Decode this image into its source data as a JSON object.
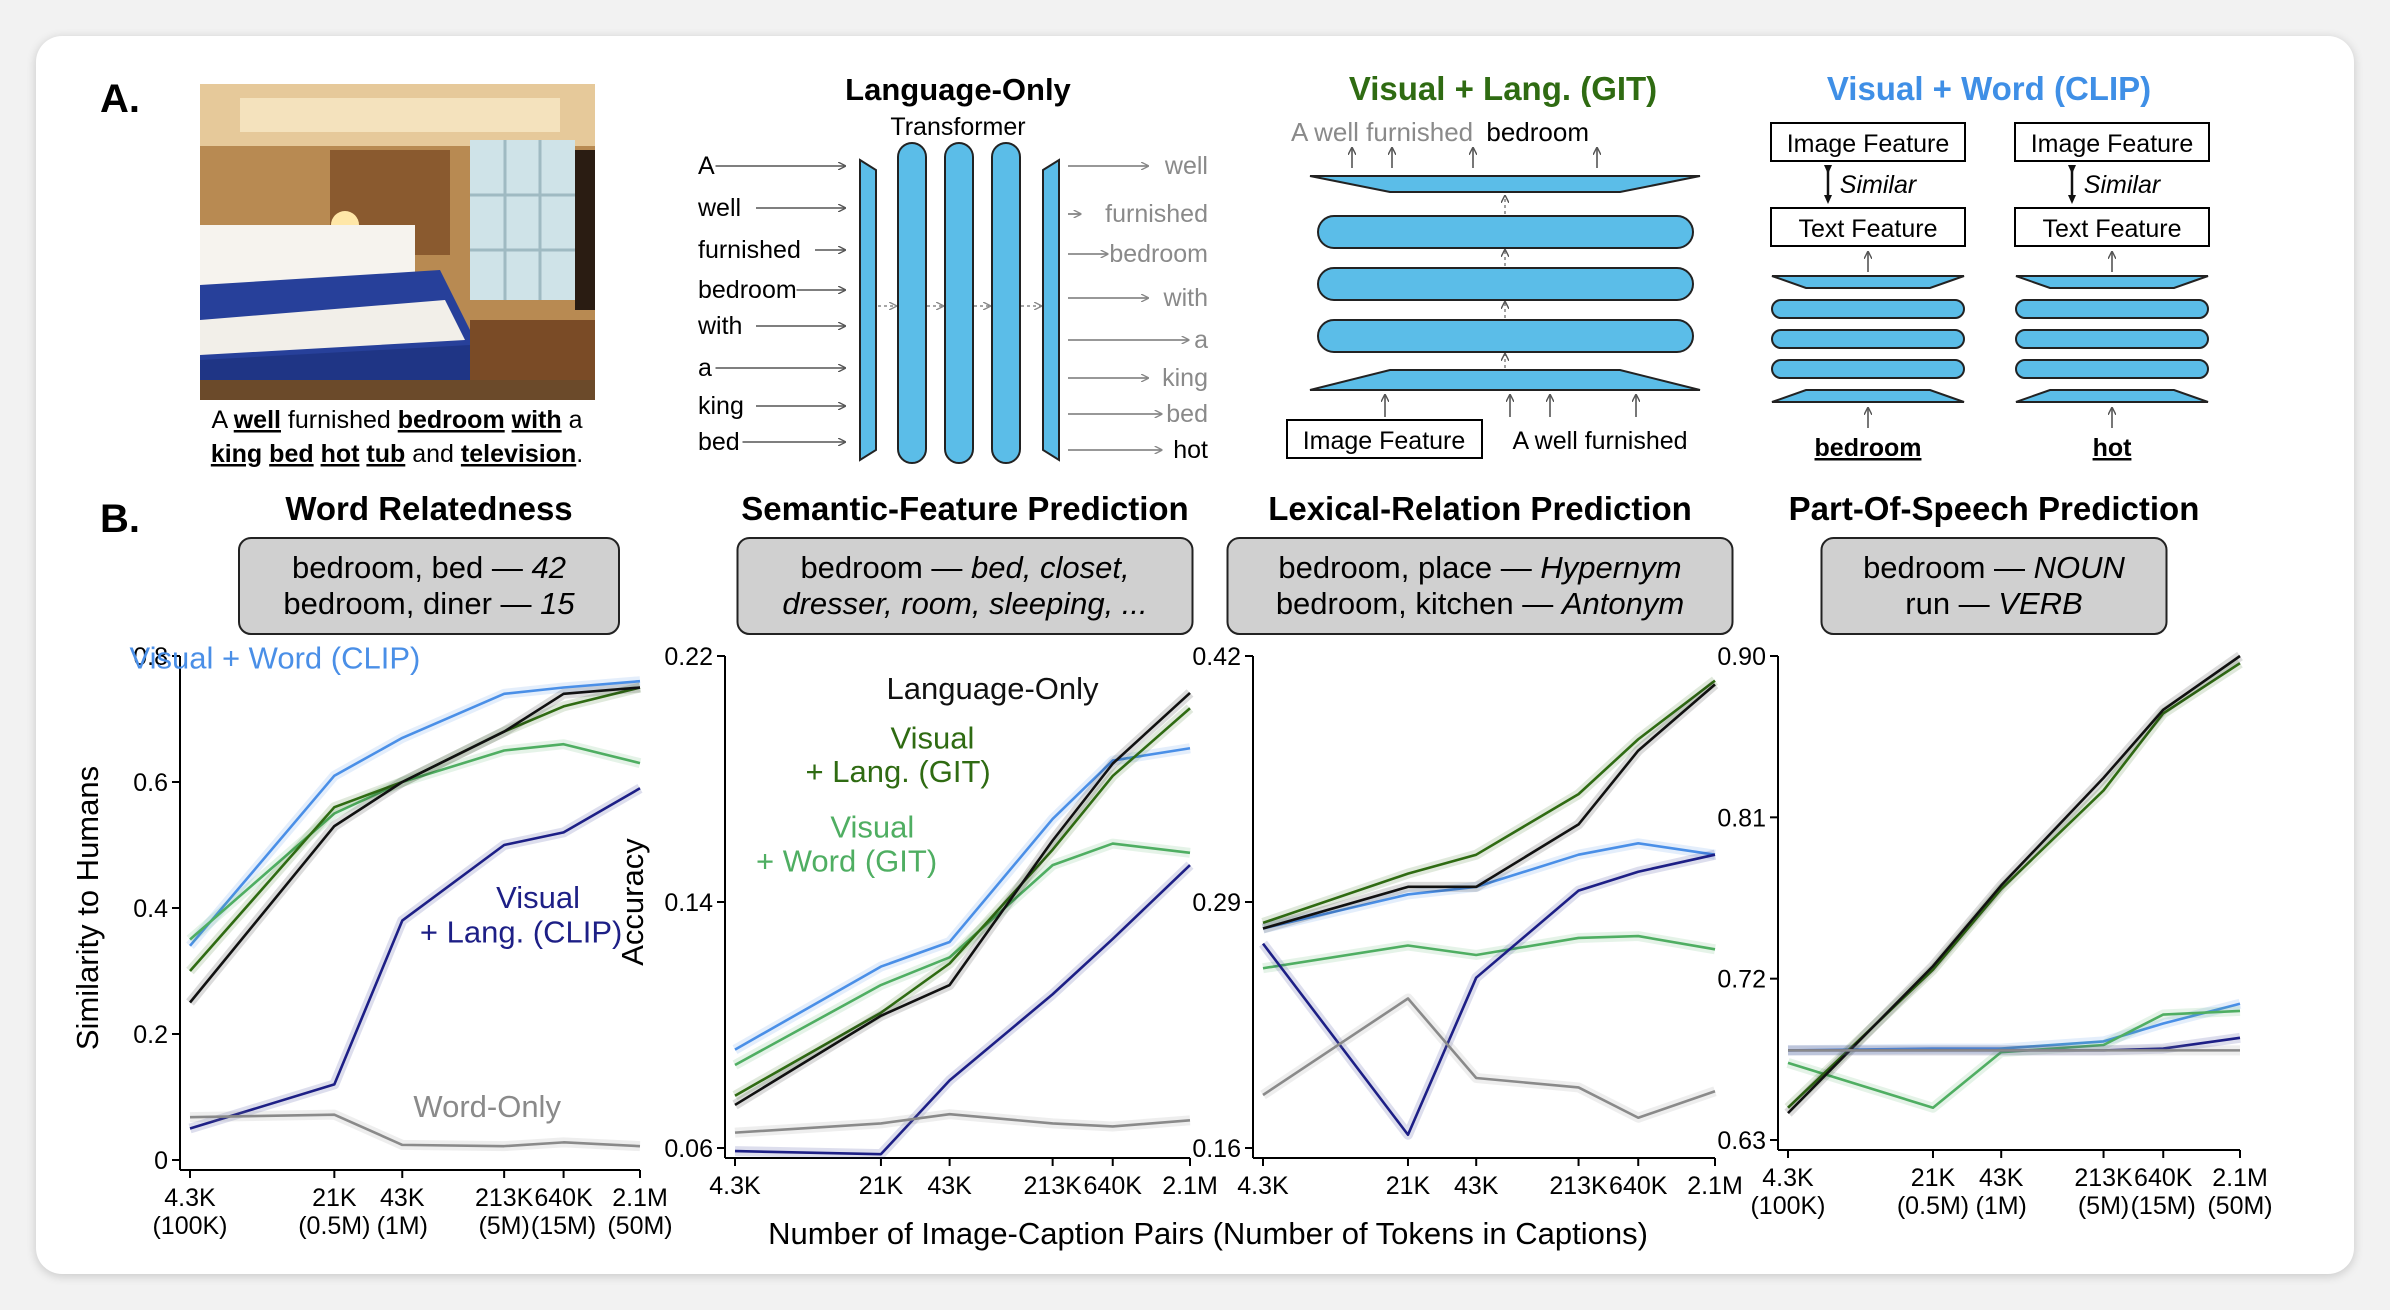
{
  "panel_labels": {
    "a": "A.",
    "b": "B."
  },
  "panel_a": {
    "caption_words": [
      {
        "text": "A ",
        "bold": false
      },
      {
        "text": "well",
        "bold": true
      },
      {
        "text": " furnished ",
        "bold": false
      },
      {
        "text": "bedroom",
        "bold": true
      },
      {
        "text": " ",
        "bold": false
      },
      {
        "text": "with",
        "bold": true
      },
      {
        "text": " a",
        "bold": false
      }
    ],
    "caption_words_2": [
      {
        "text": "king",
        "bold": true
      },
      {
        "text": " ",
        "bold": false
      },
      {
        "text": "bed",
        "bold": true
      },
      {
        "text": " ",
        "bold": false
      },
      {
        "text": "hot",
        "bold": true
      },
      {
        "text": " ",
        "bold": false
      },
      {
        "text": "tub",
        "bold": true
      },
      {
        "text": " and ",
        "bold": false
      },
      {
        "text": "television",
        "bold": true
      },
      {
        "text": ".",
        "bold": false
      }
    ],
    "language_only": {
      "title": "Language-Only",
      "subtitle": "Transformer",
      "inputs": [
        "A",
        "well",
        "furnished",
        "bedroom",
        "with",
        "a",
        "king",
        "bed"
      ],
      "outputs": [
        "well",
        "furnished",
        "bedroom",
        "with",
        "a",
        "king",
        "bed",
        "hot"
      ]
    },
    "git": {
      "title": "Visual + Lang. (GIT)",
      "output_gray": "A well furnished",
      "output_black": "bedroom",
      "image_feature": "Image Feature",
      "input_text": "A well furnished"
    },
    "clip": {
      "title": "Visual + Word (CLIP)",
      "image_feature": "Image Feature",
      "similar": "Similar",
      "text_feature": "Text Feature",
      "words": [
        "bedroom",
        "hot"
      ]
    }
  },
  "panel_b": [
    {
      "title": "Word Relatedness",
      "example_lines": [
        [
          "bedroom, bed — ",
          "42"
        ],
        [
          "bedroom, diner — ",
          "15"
        ]
      ]
    },
    {
      "title": "Semantic-Feature Prediction",
      "example_lines": [
        [
          "bedroom — ",
          "bed, closet,"
        ],
        [
          "",
          "dresser, room, sleeping, ..."
        ]
      ]
    },
    {
      "title": "Lexical-Relation Prediction",
      "example_lines": [
        [
          "bedroom, place — ",
          "Hypernym"
        ],
        [
          "bedroom, kitchen — ",
          "Antonym"
        ]
      ]
    },
    {
      "title": "Part-Of-Speech Prediction",
      "example_lines": [
        [
          "bedroom — ",
          "NOUN"
        ],
        [
          "run — ",
          "VERB"
        ]
      ]
    }
  ],
  "shared_xlabel": "Number of Image-Caption Pairs (Number of Tokens in Captions)",
  "colors": {
    "language_only": "#111111",
    "visual_lang_git": "#2f6b12",
    "visual_word_git": "#4fae62",
    "visual_word_clip": "#4a8fe7",
    "visual_lang_clip": "#1d1f86",
    "word_only": "#8a8a8a",
    "diagram_blue": "#5bbde8",
    "git_title": "#2f6b12",
    "clip_title": "#3f8fe6"
  },
  "chart_data": [
    {
      "type": "line",
      "title": "Word Relatedness",
      "ylabel": "Similarity to Humans",
      "xlabel": "",
      "x": [
        0,
        1,
        2,
        3,
        4,
        5
      ],
      "x_tick_positions": [
        0,
        1.7,
        2.5,
        3.7,
        4.4,
        5.3
      ],
      "xticks": [
        [
          "4.3K",
          "(100K)"
        ],
        [
          "21K",
          "(0.5M)"
        ],
        [
          "43K",
          "(1M)"
        ],
        [
          "213K",
          "(5M)"
        ],
        [
          "640K",
          "(15M)"
        ],
        [
          "2.1M",
          "(50M)"
        ]
      ],
      "ylim": [
        0,
        0.8
      ],
      "yticks": [
        "0",
        "0.2",
        "0.4",
        "0.6",
        "0.8"
      ],
      "ytick_values": [
        0,
        0.2,
        0.4,
        0.6,
        0.8
      ],
      "series": [
        {
          "name": "Visual + Word (CLIP)",
          "key": "visual_word_clip",
          "x": [
            0,
            1.7,
            2.5,
            3.7,
            4.4,
            5.3
          ],
          "values": [
            0.34,
            0.61,
            0.67,
            0.74,
            0.75,
            0.76
          ]
        },
        {
          "name": "Visual + Word (GIT)",
          "key": "visual_word_git",
          "x": [
            0,
            1.7,
            2.5,
            3.7,
            4.4,
            5.3
          ],
          "values": [
            0.35,
            0.55,
            0.6,
            0.65,
            0.66,
            0.63
          ]
        },
        {
          "name": "Visual + Lang. (GIT)",
          "key": "visual_lang_git",
          "x": [
            0,
            1.7,
            2.5,
            3.7,
            4.4,
            5.3
          ],
          "values": [
            0.3,
            0.56,
            0.6,
            0.68,
            0.72,
            0.75
          ]
        },
        {
          "name": "Language-Only",
          "key": "language_only",
          "x": [
            0,
            1.7,
            2.5,
            3.7,
            4.4,
            5.3
          ],
          "values": [
            0.25,
            0.53,
            0.6,
            0.68,
            0.74,
            0.75
          ]
        },
        {
          "name": "Visual + Lang. (CLIP)",
          "key": "visual_lang_clip",
          "x": [
            0,
            1.7,
            2.5,
            3.7,
            4.4,
            5.3
          ],
          "values": [
            0.05,
            0.12,
            0.38,
            0.5,
            0.52,
            0.59
          ]
        },
        {
          "name": "Word-Only",
          "key": "word_only",
          "x": [
            0,
            1.7,
            2.5,
            3.7,
            4.4,
            5.3
          ],
          "values": [
            0.068,
            0.072,
            0.024,
            0.022,
            0.028,
            0.022
          ]
        }
      ],
      "annotations": [
        {
          "text": "Visual + Word (CLIP)",
          "key": "visual_word_clip",
          "at": [
            1.0,
            0.78
          ]
        },
        {
          "text": "Visual",
          "key": "visual_lang_clip",
          "at": [
            4.1,
            0.4
          ]
        },
        {
          "text": "+ Lang. (CLIP)",
          "key": "visual_lang_clip",
          "at": [
            3.9,
            0.345
          ]
        },
        {
          "text": "Word-Only",
          "key": "word_only",
          "at": [
            3.5,
            0.068
          ]
        }
      ]
    },
    {
      "type": "line",
      "title": "Semantic-Feature Prediction",
      "ylabel": "Accuracy",
      "xlabel": "",
      "x": [
        0,
        1,
        2,
        3,
        4,
        5
      ],
      "x_tick_positions": [
        0,
        1.7,
        2.5,
        3.7,
        4.4,
        5.3
      ],
      "xticks": [
        [
          "4.3K",
          ""
        ],
        [
          "21K",
          ""
        ],
        [
          "43K",
          ""
        ],
        [
          "213K",
          ""
        ],
        [
          "640K",
          ""
        ],
        [
          "2.1M",
          ""
        ]
      ],
      "ylim": [
        0.06,
        0.22
      ],
      "yticks": [
        "0.06",
        "0.14",
        "0.22"
      ],
      "ytick_values": [
        0.06,
        0.14,
        0.22
      ],
      "series": [
        {
          "name": "Visual + Word (CLIP)",
          "key": "visual_word_clip",
          "x": [
            0,
            1.7,
            2.5,
            3.7,
            4.4,
            5.3
          ],
          "values": [
            0.092,
            0.119,
            0.127,
            0.167,
            0.186,
            0.19
          ]
        },
        {
          "name": "Visual + Word (GIT)",
          "key": "visual_word_git",
          "x": [
            0,
            1.7,
            2.5,
            3.7,
            4.4,
            5.3
          ],
          "values": [
            0.087,
            0.113,
            0.122,
            0.152,
            0.159,
            0.156
          ]
        },
        {
          "name": "Visual + Lang. (GIT)",
          "key": "visual_lang_git",
          "x": [
            0,
            1.7,
            2.5,
            3.7,
            4.4,
            5.3
          ],
          "values": [
            0.077,
            0.104,
            0.12,
            0.157,
            0.181,
            0.203
          ]
        },
        {
          "name": "Language-Only",
          "key": "language_only",
          "x": [
            0,
            1.7,
            2.5,
            3.7,
            4.4,
            5.3
          ],
          "values": [
            0.074,
            0.103,
            0.113,
            0.16,
            0.185,
            0.208
          ]
        },
        {
          "name": "Visual + Lang. (CLIP)",
          "key": "visual_lang_clip",
          "x": [
            0,
            1.7,
            2.5,
            3.7,
            4.4,
            5.3
          ],
          "values": [
            0.059,
            0.058,
            0.082,
            0.11,
            0.128,
            0.152
          ]
        },
        {
          "name": "Word-Only",
          "key": "word_only",
          "x": [
            0,
            1.7,
            2.5,
            3.7,
            4.4,
            5.3
          ],
          "values": [
            0.065,
            0.068,
            0.071,
            0.068,
            0.067,
            0.069
          ]
        }
      ],
      "annotations": [
        {
          "text": "Language-Only",
          "key": "language_only",
          "at": [
            3.0,
            0.206
          ]
        },
        {
          "text": "Visual",
          "key": "visual_lang_git",
          "at": [
            2.3,
            0.19
          ]
        },
        {
          "text": "+ Lang. (GIT)",
          "key": "visual_lang_git",
          "at": [
            1.9,
            0.179
          ]
        },
        {
          "text": "Visual",
          "key": "visual_word_git",
          "at": [
            1.6,
            0.161
          ]
        },
        {
          "text": "+ Word (GIT)",
          "key": "visual_word_git",
          "at": [
            1.3,
            0.15
          ]
        }
      ]
    },
    {
      "type": "line",
      "title": "Lexical-Relation Prediction",
      "ylabel": "",
      "xlabel": "Number of Image-Caption Pairs (Number of Tokens in Captions)",
      "x": [
        0,
        1,
        2,
        3,
        4,
        5
      ],
      "x_tick_positions": [
        0,
        1.7,
        2.5,
        3.7,
        4.4,
        5.3
      ],
      "xticks": [
        [
          "4.3K",
          ""
        ],
        [
          "21K",
          ""
        ],
        [
          "43K",
          ""
        ],
        [
          "213K",
          ""
        ],
        [
          "640K",
          ""
        ],
        [
          "2.1M",
          ""
        ]
      ],
      "ylim": [
        0.16,
        0.42
      ],
      "yticks": [
        "0.16",
        "0.29",
        "0.42"
      ],
      "ytick_values": [
        0.16,
        0.29,
        0.42
      ],
      "series": [
        {
          "name": "Visual + Word (CLIP)",
          "key": "visual_word_clip",
          "x": [
            0,
            1.7,
            2.5,
            3.7,
            4.4,
            5.3
          ],
          "values": [
            0.276,
            0.294,
            0.298,
            0.315,
            0.321,
            0.315
          ]
        },
        {
          "name": "Visual + Word (GIT)",
          "key": "visual_word_git",
          "x": [
            0,
            1.7,
            2.5,
            3.7,
            4.4,
            5.3
          ],
          "values": [
            0.255,
            0.267,
            0.262,
            0.271,
            0.272,
            0.265
          ]
        },
        {
          "name": "Visual + Lang. (GIT)",
          "key": "visual_lang_git",
          "x": [
            0,
            1.7,
            2.5,
            3.7,
            4.4,
            5.3
          ],
          "values": [
            0.279,
            0.305,
            0.315,
            0.347,
            0.376,
            0.407
          ]
        },
        {
          "name": "Language-Only",
          "key": "language_only",
          "x": [
            0,
            1.7,
            2.5,
            3.7,
            4.4,
            5.3
          ],
          "values": [
            0.276,
            0.298,
            0.298,
            0.331,
            0.37,
            0.405
          ]
        },
        {
          "name": "Visual + Lang. (CLIP)",
          "key": "visual_lang_clip",
          "x": [
            0,
            1.7,
            2.5,
            3.7,
            4.4,
            5.3
          ],
          "values": [
            0.268,
            0.167,
            0.25,
            0.296,
            0.306,
            0.315
          ]
        },
        {
          "name": "Word-Only",
          "key": "word_only",
          "x": [
            0,
            1.7,
            2.5,
            3.7,
            4.4,
            5.3
          ],
          "values": [
            0.188,
            0.239,
            0.197,
            0.192,
            0.176,
            0.19
          ]
        }
      ],
      "annotations": []
    },
    {
      "type": "line",
      "title": "Part-Of-Speech Prediction",
      "ylabel": "",
      "xlabel": "",
      "x": [
        0,
        1,
        2,
        3,
        4,
        5
      ],
      "x_tick_positions": [
        0,
        1.7,
        2.5,
        3.7,
        4.4,
        5.3
      ],
      "xticks": [
        [
          "4.3K",
          "(100K)"
        ],
        [
          "21K",
          "(0.5M)"
        ],
        [
          "43K",
          "(1M)"
        ],
        [
          "213K",
          "(5M)"
        ],
        [
          "640K",
          "(15M)"
        ],
        [
          "2.1M",
          "(50M)"
        ]
      ],
      "ylim": [
        0.63,
        0.9
      ],
      "yticks": [
        "0.63",
        "0.72",
        "0.81",
        "0.90"
      ],
      "ytick_values": [
        0.63,
        0.72,
        0.81,
        0.9
      ],
      "series": [
        {
          "name": "Visual + Word (CLIP)",
          "key": "visual_word_clip",
          "x": [
            0,
            1.7,
            2.5,
            3.7,
            4.4,
            5.3
          ],
          "values": [
            0.68,
            0.681,
            0.681,
            0.685,
            0.695,
            0.706
          ]
        },
        {
          "name": "Visual + Word (GIT)",
          "key": "visual_word_git",
          "x": [
            0,
            1.7,
            2.5,
            3.7,
            4.4,
            5.3
          ],
          "values": [
            0.673,
            0.648,
            0.679,
            0.683,
            0.7,
            0.702
          ]
        },
        {
          "name": "Visual + Lang. (GIT)",
          "key": "visual_lang_git",
          "x": [
            0,
            1.7,
            2.5,
            3.7,
            4.4,
            5.3
          ],
          "values": [
            0.648,
            0.725,
            0.77,
            0.825,
            0.868,
            0.896
          ]
        },
        {
          "name": "Language-Only",
          "key": "language_only",
          "x": [
            0,
            1.7,
            2.5,
            3.7,
            4.4,
            5.3
          ],
          "values": [
            0.645,
            0.727,
            0.772,
            0.832,
            0.87,
            0.9
          ]
        },
        {
          "name": "Visual + Lang. (CLIP)",
          "key": "visual_lang_clip",
          "x": [
            0,
            1.7,
            2.5,
            3.7,
            4.4,
            5.3
          ],
          "values": [
            0.68,
            0.68,
            0.68,
            0.68,
            0.681,
            0.687
          ]
        },
        {
          "name": "Word-Only",
          "key": "word_only",
          "x": [
            0,
            1.7,
            2.5,
            3.7,
            4.4,
            5.3
          ],
          "values": [
            0.68,
            0.68,
            0.68,
            0.68,
            0.68,
            0.68
          ]
        }
      ],
      "annotations": []
    }
  ]
}
